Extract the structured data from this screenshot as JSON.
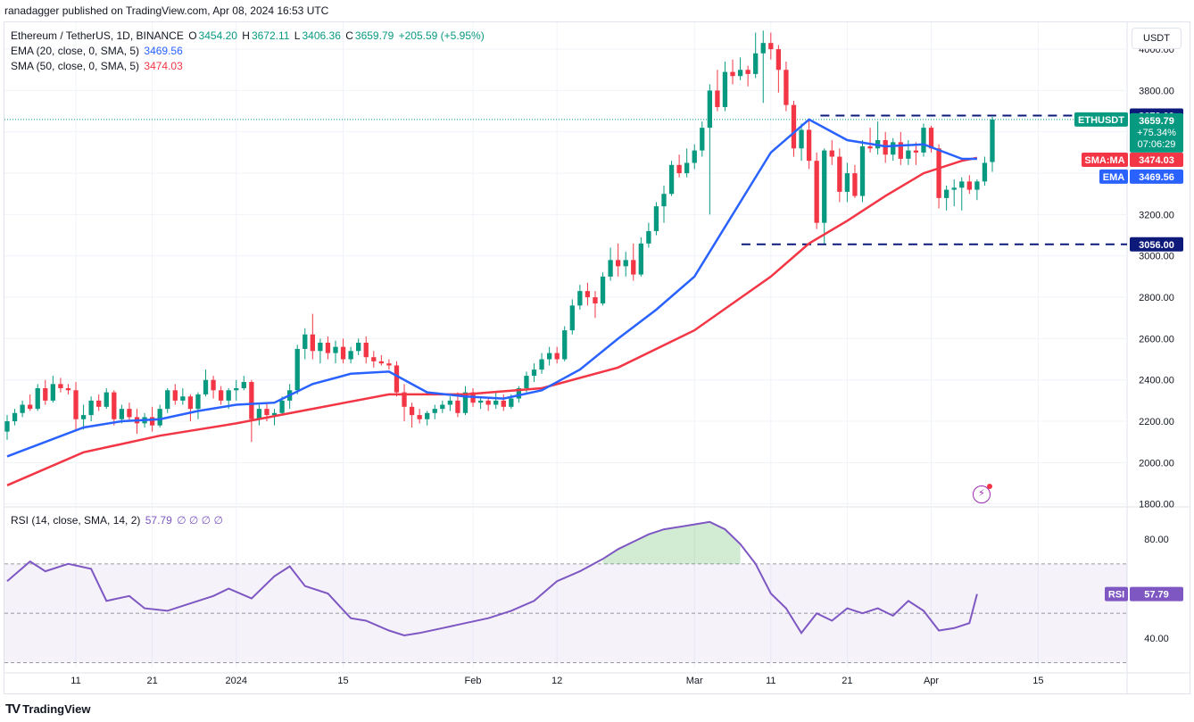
{
  "publisher": "ranadagger published on TradingView.com, Apr 08, 2024 16:53 UTC",
  "legend": {
    "symbol": "Ethereum / TetherUS, 1D, BINANCE",
    "o_label": "O",
    "o": "3454.20",
    "h_label": "H",
    "h": "3672.11",
    "l_label": "L",
    "l": "3406.36",
    "c_label": "C",
    "c": "3659.79",
    "change": "+205.59 (+5.95%)",
    "ema_label": "EMA (20, close, 0, SMA, 5)",
    "ema_value": "3469.56",
    "sma_label": "SMA (50, close, 0, SMA, 5)",
    "sma_value": "3474.03",
    "rsi_label": "RSI (14, close, SMA, 14, 2)",
    "rsi_value": "57.79",
    "rsi_extra": "∅ ∅ ∅ ∅"
  },
  "currency": "USDT",
  "footer": {
    "brand": "TradingView"
  },
  "tags": {
    "resistance": "3679.00",
    "support": "3056.00",
    "symbol": "ETHUSDT",
    "price": "3659.79",
    "change_pct": "+75.34%",
    "countdown": "07:06:29",
    "sma_label": "SMA:MA",
    "sma_value": "3474.03",
    "ema_label": "EMA",
    "ema_value": "3469.56",
    "rsi_label": "RSI",
    "rsi_value": "57.79"
  },
  "colors": {
    "up": "#089981",
    "down": "#f23645",
    "ema": "#2962ff",
    "sma": "#f23645",
    "rsi": "#7e57c2",
    "tag_symbol": "#089981",
    "tag_rsi": "#7e57c2"
  },
  "chart_data": {
    "type": "candlestick",
    "yticks": [
      "4000.00",
      "3800.00",
      "3600.00",
      "3400.00",
      "3200.00",
      "3000.00",
      "2800.00",
      "2600.00",
      "2400.00",
      "2200.00",
      "2000.00",
      "1800.00"
    ],
    "ylim": [
      1790,
      4130
    ],
    "xticks": [
      {
        "label": "11",
        "day": 9
      },
      {
        "label": "21",
        "day": 19
      },
      {
        "label": "2024",
        "day": 30
      },
      {
        "label": "15",
        "day": 44
      },
      {
        "label": "Feb",
        "day": 61
      },
      {
        "label": "12",
        "day": 72
      },
      {
        "label": "Mar",
        "day": 90
      },
      {
        "label": "11",
        "day": 100
      },
      {
        "label": "21",
        "day": 110
      },
      {
        "label": "Apr",
        "day": 121
      },
      {
        "label": "15",
        "day": 135
      }
    ],
    "levels": {
      "resistance": 3679,
      "support": 3056
    },
    "ohlc": [
      [
        2150,
        2230,
        2110,
        2200
      ],
      [
        2200,
        2260,
        2180,
        2240
      ],
      [
        2240,
        2300,
        2220,
        2280
      ],
      [
        2280,
        2330,
        2250,
        2260
      ],
      [
        2260,
        2380,
        2250,
        2360
      ],
      [
        2360,
        2400,
        2280,
        2300
      ],
      [
        2300,
        2420,
        2290,
        2380
      ],
      [
        2380,
        2410,
        2340,
        2360
      ],
      [
        2360,
        2380,
        2330,
        2350
      ],
      [
        2350,
        2390,
        2150,
        2210
      ],
      [
        2210,
        2280,
        2160,
        2230
      ],
      [
        2230,
        2320,
        2200,
        2300
      ],
      [
        2300,
        2330,
        2250,
        2270
      ],
      [
        2270,
        2360,
        2260,
        2340
      ],
      [
        2340,
        2350,
        2180,
        2210
      ],
      [
        2210,
        2280,
        2190,
        2260
      ],
      [
        2260,
        2290,
        2200,
        2220
      ],
      [
        2220,
        2260,
        2140,
        2190
      ],
      [
        2190,
        2240,
        2170,
        2220
      ],
      [
        2220,
        2270,
        2150,
        2180
      ],
      [
        2180,
        2280,
        2170,
        2260
      ],
      [
        2260,
        2360,
        2240,
        2350
      ],
      [
        2350,
        2380,
        2280,
        2300
      ],
      [
        2300,
        2360,
        2280,
        2320
      ],
      [
        2320,
        2330,
        2200,
        2260
      ],
      [
        2260,
        2340,
        2210,
        2330
      ],
      [
        2330,
        2450,
        2320,
        2400
      ],
      [
        2400,
        2420,
        2310,
        2350
      ],
      [
        2350,
        2370,
        2280,
        2300
      ],
      [
        2300,
        2360,
        2260,
        2350
      ],
      [
        2350,
        2400,
        2300,
        2360
      ],
      [
        2360,
        2420,
        2350,
        2390
      ],
      [
        2390,
        2400,
        2100,
        2210
      ],
      [
        2210,
        2280,
        2180,
        2260
      ],
      [
        2260,
        2290,
        2200,
        2230
      ],
      [
        2230,
        2260,
        2180,
        2240
      ],
      [
        2240,
        2320,
        2230,
        2300
      ],
      [
        2300,
        2380,
        2260,
        2350
      ],
      [
        2350,
        2570,
        2330,
        2550
      ],
      [
        2550,
        2650,
        2500,
        2620
      ],
      [
        2620,
        2720,
        2500,
        2540
      ],
      [
        2540,
        2600,
        2480,
        2580
      ],
      [
        2580,
        2610,
        2500,
        2530
      ],
      [
        2530,
        2590,
        2480,
        2560
      ],
      [
        2560,
        2600,
        2480,
        2500
      ],
      [
        2500,
        2560,
        2480,
        2540
      ],
      [
        2540,
        2600,
        2520,
        2580
      ],
      [
        2580,
        2610,
        2480,
        2510
      ],
      [
        2510,
        2540,
        2460,
        2490
      ],
      [
        2490,
        2520,
        2470,
        2480
      ],
      [
        2480,
        2500,
        2450,
        2470
      ],
      [
        2470,
        2490,
        2320,
        2340
      ],
      [
        2340,
        2380,
        2200,
        2270
      ],
      [
        2270,
        2290,
        2170,
        2230
      ],
      [
        2230,
        2260,
        2190,
        2210
      ],
      [
        2210,
        2250,
        2180,
        2240
      ],
      [
        2240,
        2280,
        2210,
        2260
      ],
      [
        2260,
        2300,
        2240,
        2280
      ],
      [
        2280,
        2320,
        2250,
        2300
      ],
      [
        2300,
        2340,
        2220,
        2240
      ],
      [
        2240,
        2370,
        2230,
        2340
      ],
      [
        2340,
        2360,
        2270,
        2290
      ],
      [
        2290,
        2320,
        2260,
        2300
      ],
      [
        2300,
        2310,
        2250,
        2280
      ],
      [
        2280,
        2340,
        2260,
        2300
      ],
      [
        2300,
        2330,
        2250,
        2270
      ],
      [
        2270,
        2330,
        2260,
        2310
      ],
      [
        2310,
        2370,
        2290,
        2360
      ],
      [
        2360,
        2440,
        2340,
        2420
      ],
      [
        2420,
        2480,
        2390,
        2450
      ],
      [
        2450,
        2530,
        2430,
        2500
      ],
      [
        2500,
        2560,
        2470,
        2530
      ],
      [
        2530,
        2560,
        2480,
        2500
      ],
      [
        2500,
        2660,
        2490,
        2640
      ],
      [
        2640,
        2790,
        2620,
        2760
      ],
      [
        2760,
        2860,
        2740,
        2830
      ],
      [
        2830,
        2870,
        2760,
        2800
      ],
      [
        2800,
        2830,
        2700,
        2770
      ],
      [
        2770,
        2920,
        2760,
        2900
      ],
      [
        2900,
        3040,
        2880,
        2980
      ],
      [
        2980,
        3060,
        2900,
        2950
      ],
      [
        2950,
        3020,
        2900,
        2980
      ],
      [
        2980,
        3060,
        2880,
        2910
      ],
      [
        2910,
        3090,
        2900,
        3060
      ],
      [
        3060,
        3160,
        3040,
        3120
      ],
      [
        3120,
        3260,
        3100,
        3240
      ],
      [
        3240,
        3340,
        3160,
        3300
      ],
      [
        3300,
        3460,
        3290,
        3440
      ],
      [
        3440,
        3490,
        3380,
        3400
      ],
      [
        3400,
        3520,
        3380,
        3450
      ],
      [
        3450,
        3540,
        3420,
        3510
      ],
      [
        3510,
        3650,
        3480,
        3620
      ],
      [
        3620,
        3830,
        3200,
        3800
      ],
      [
        3800,
        3900,
        3700,
        3720
      ],
      [
        3720,
        3940,
        3700,
        3890
      ],
      [
        3890,
        3950,
        3830,
        3870
      ],
      [
        3870,
        3960,
        3850,
        3900
      ],
      [
        3900,
        3920,
        3820,
        3880
      ],
      [
        3880,
        4080,
        3860,
        3980
      ],
      [
        3980,
        4090,
        3740,
        4030
      ],
      [
        4030,
        4080,
        3950,
        4000
      ],
      [
        4000,
        4020,
        3790,
        3900
      ],
      [
        3900,
        3940,
        3700,
        3730
      ],
      [
        3730,
        3750,
        3480,
        3520
      ],
      [
        3520,
        3640,
        3460,
        3610
      ],
      [
        3610,
        3660,
        3420,
        3460
      ],
      [
        3460,
        3500,
        3130,
        3160
      ],
      [
        3160,
        3520,
        3060,
        3510
      ],
      [
        3510,
        3560,
        3440,
        3480
      ],
      [
        3480,
        3520,
        3260,
        3310
      ],
      [
        3310,
        3450,
        3260,
        3400
      ],
      [
        3400,
        3440,
        3280,
        3290
      ],
      [
        3290,
        3560,
        3260,
        3530
      ],
      [
        3530,
        3620,
        3500,
        3520
      ],
      [
        3520,
        3650,
        3490,
        3560
      ],
      [
        3560,
        3600,
        3450,
        3490
      ],
      [
        3490,
        3570,
        3460,
        3550
      ],
      [
        3550,
        3600,
        3440,
        3470
      ],
      [
        3470,
        3560,
        3440,
        3510
      ],
      [
        3510,
        3550,
        3440,
        3500
      ],
      [
        3500,
        3640,
        3480,
        3620
      ],
      [
        3620,
        3630,
        3500,
        3520
      ],
      [
        3520,
        3540,
        3230,
        3280
      ],
      [
        3280,
        3340,
        3220,
        3320
      ],
      [
        3320,
        3370,
        3240,
        3330
      ],
      [
        3330,
        3380,
        3220,
        3360
      ],
      [
        3360,
        3390,
        3300,
        3320
      ],
      [
        3320,
        3370,
        3270,
        3360
      ],
      [
        3360,
        3480,
        3340,
        3450
      ],
      [
        3454.2,
        3672.11,
        3406.36,
        3659.79
      ]
    ],
    "ema20": [
      [
        0,
        2030
      ],
      [
        5,
        2100
      ],
      [
        10,
        2170
      ],
      [
        15,
        2200
      ],
      [
        20,
        2210
      ],
      [
        25,
        2250
      ],
      [
        30,
        2280
      ],
      [
        35,
        2290
      ],
      [
        40,
        2380
      ],
      [
        45,
        2430
      ],
      [
        50,
        2440
      ],
      [
        55,
        2340
      ],
      [
        60,
        2320
      ],
      [
        65,
        2310
      ],
      [
        70,
        2350
      ],
      [
        75,
        2450
      ],
      [
        80,
        2600
      ],
      [
        85,
        2740
      ],
      [
        90,
        2900
      ],
      [
        95,
        3200
      ],
      [
        100,
        3500
      ],
      [
        105,
        3660
      ],
      [
        110,
        3560
      ],
      [
        115,
        3530
      ],
      [
        120,
        3540
      ],
      [
        125,
        3470
      ],
      [
        127,
        3469.56
      ]
    ],
    "sma50": [
      [
        0,
        1890
      ],
      [
        10,
        2050
      ],
      [
        20,
        2130
      ],
      [
        30,
        2190
      ],
      [
        40,
        2260
      ],
      [
        50,
        2330
      ],
      [
        60,
        2330
      ],
      [
        70,
        2360
      ],
      [
        80,
        2460
      ],
      [
        90,
        2640
      ],
      [
        100,
        2900
      ],
      [
        105,
        3060
      ],
      [
        110,
        3170
      ],
      [
        115,
        3290
      ],
      [
        120,
        3400
      ],
      [
        125,
        3460
      ],
      [
        127,
        3474.03
      ]
    ],
    "rsi": {
      "ylim": [
        28,
        92
      ],
      "upper": 70,
      "mid": 50,
      "lower": 30,
      "yticks": [
        {
          "label": "80.00",
          "value": 80
        },
        {
          "label": "40.00",
          "value": 40
        }
      ],
      "series": [
        [
          0,
          63
        ],
        [
          3,
          71
        ],
        [
          5,
          67
        ],
        [
          8,
          70
        ],
        [
          11,
          68
        ],
        [
          13,
          55
        ],
        [
          16,
          57
        ],
        [
          18,
          52
        ],
        [
          21,
          51
        ],
        [
          24,
          54
        ],
        [
          27,
          57
        ],
        [
          29,
          60
        ],
        [
          32,
          56
        ],
        [
          35,
          65
        ],
        [
          37,
          69
        ],
        [
          39,
          61
        ],
        [
          42,
          58
        ],
        [
          45,
          48
        ],
        [
          47,
          47
        ],
        [
          50,
          43
        ],
        [
          52,
          41
        ],
        [
          54,
          42
        ],
        [
          57,
          44
        ],
        [
          60,
          46
        ],
        [
          63,
          48
        ],
        [
          66,
          51
        ],
        [
          69,
          55
        ],
        [
          72,
          63
        ],
        [
          75,
          67
        ],
        [
          78,
          72
        ],
        [
          80,
          76
        ],
        [
          82,
          79
        ],
        [
          84,
          82
        ],
        [
          86,
          84
        ],
        [
          88,
          85
        ],
        [
          90,
          86
        ],
        [
          92,
          87
        ],
        [
          94,
          84
        ],
        [
          96,
          78
        ],
        [
          98,
          70
        ],
        [
          100,
          58
        ],
        [
          102,
          52
        ],
        [
          104,
          42
        ],
        [
          106,
          50
        ],
        [
          108,
          47
        ],
        [
          110,
          52
        ],
        [
          112,
          50
        ],
        [
          114,
          52
        ],
        [
          116,
          49
        ],
        [
          118,
          55
        ],
        [
          120,
          51
        ],
        [
          122,
          43
        ],
        [
          124,
          44
        ],
        [
          126,
          46
        ],
        [
          127,
          57.79
        ]
      ]
    }
  }
}
